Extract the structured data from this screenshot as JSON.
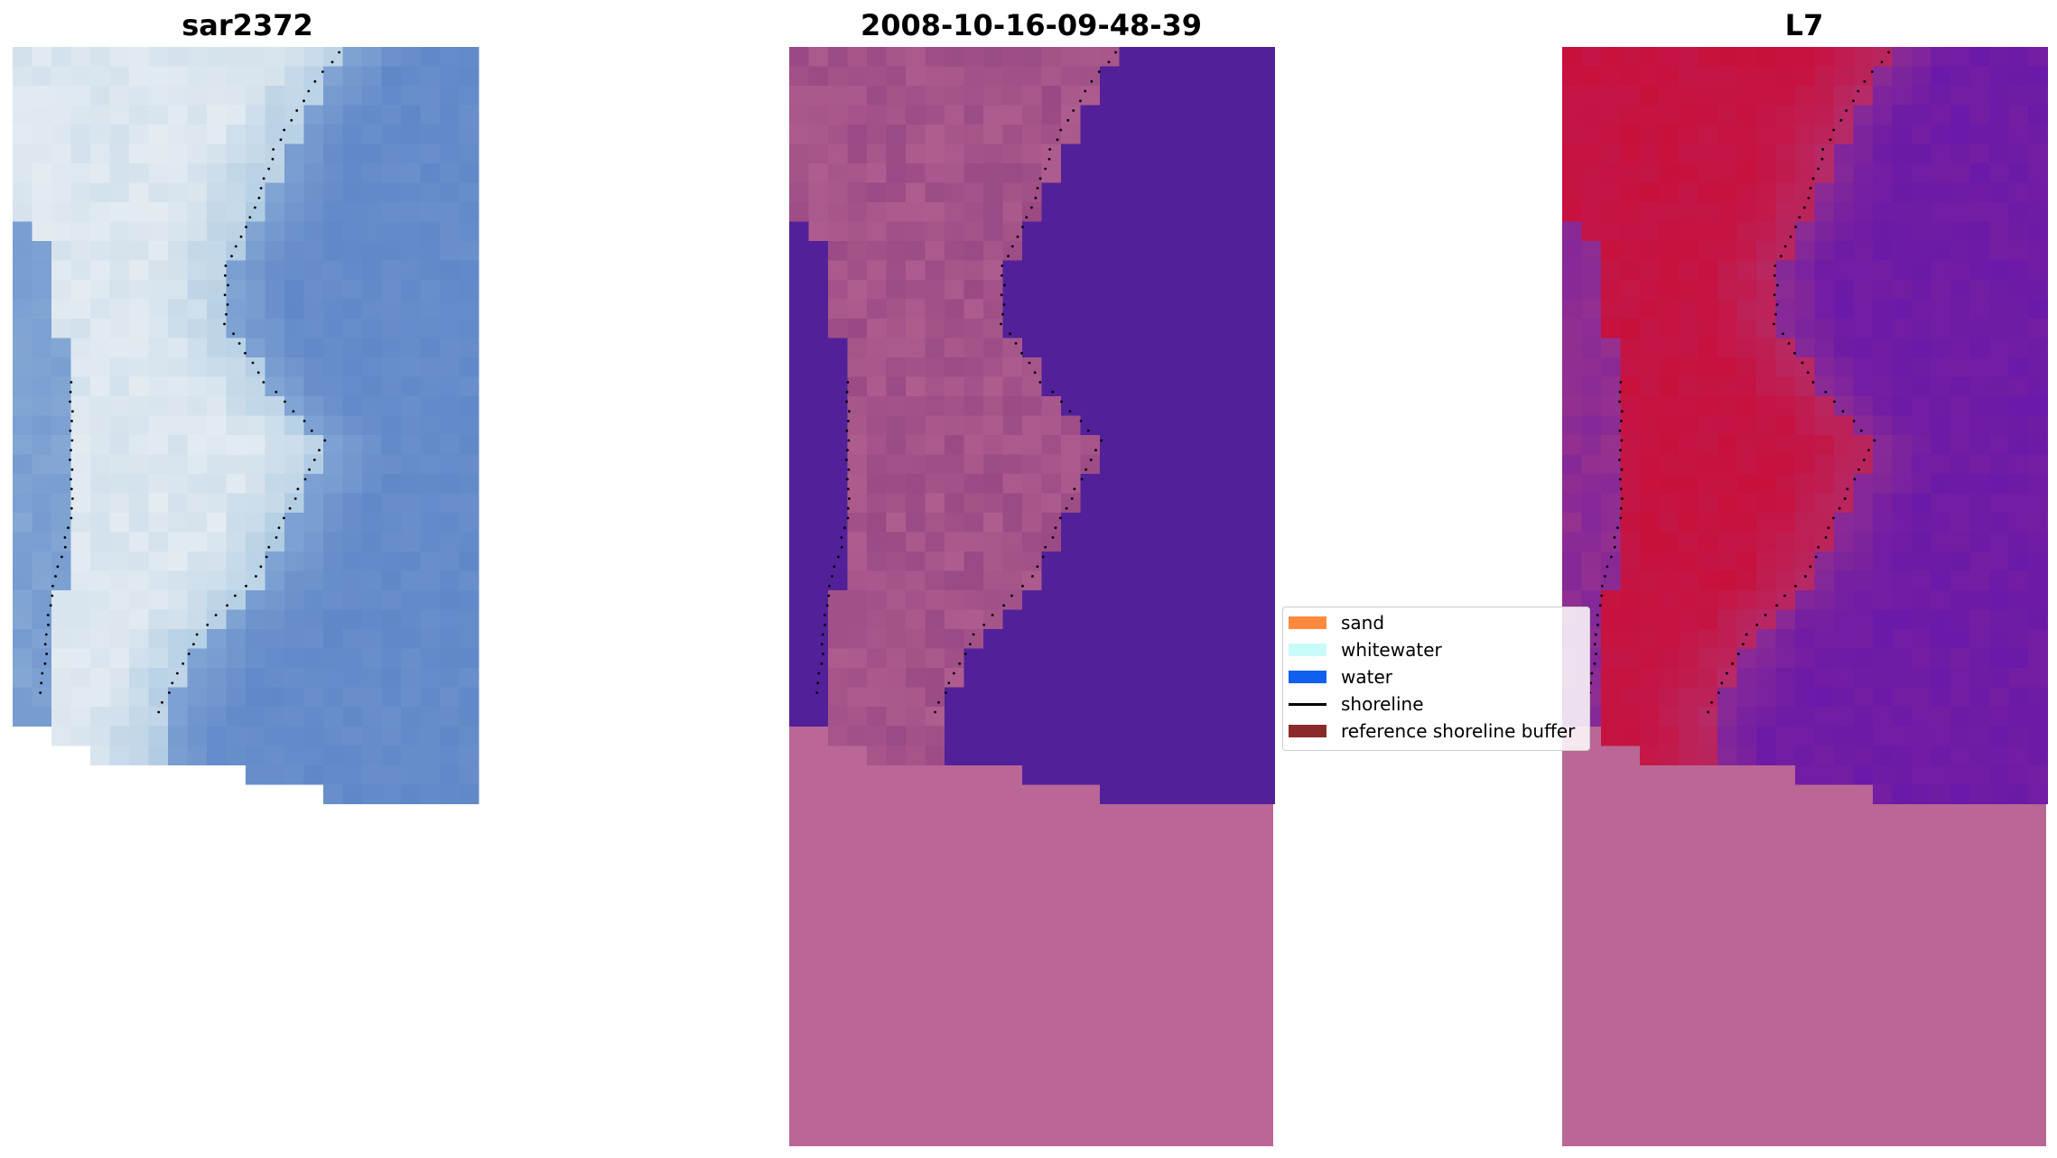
{
  "panels": [
    {
      "title": "sar2372",
      "kind": "rgb"
    },
    {
      "title": "2008-10-16-09-48-39",
      "kind": "classified"
    },
    {
      "title": "L7",
      "kind": "index"
    }
  ],
  "legend": {
    "items": [
      {
        "label": "sand",
        "color": "#ff8a3d",
        "type": "patch"
      },
      {
        "label": "whitewater",
        "color": "#c8fafa",
        "type": "patch"
      },
      {
        "label": "water",
        "color": "#1060f0",
        "type": "patch"
      },
      {
        "label": "shoreline",
        "color": "#000000",
        "type": "line"
      },
      {
        "label": "reference shoreline buffer",
        "color": "#8b2a2a",
        "type": "patch"
      }
    ]
  },
  "colors": {
    "background": "#ffffff",
    "mask_pink": "#ba6795",
    "water_purple": "#52219a",
    "index_red": "#c8103c",
    "index_violet": "#6a19a8",
    "rgb_blue": "#6088c8",
    "rgb_white": "#eef2f4"
  }
}
